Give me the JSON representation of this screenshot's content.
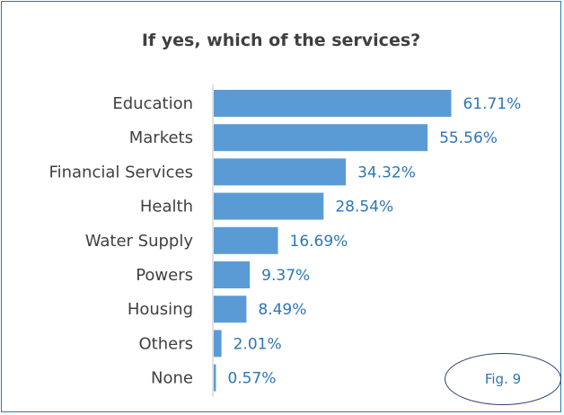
{
  "chart_data": {
    "type": "bar",
    "orientation": "horizontal",
    "title": "If yes, which of the services?",
    "categories": [
      "Education",
      "Markets",
      "Financial Services",
      "Health",
      "Water Supply",
      "Powers",
      "Housing",
      "Others",
      "None"
    ],
    "values": [
      61.71,
      55.56,
      34.32,
      28.54,
      16.69,
      9.37,
      8.49,
      2.01,
      0.57
    ],
    "value_labels": [
      "61.71%",
      "55.56%",
      "34.32%",
      "28.54%",
      "16.69%",
      "9.37%",
      "8.49%",
      "2.01%",
      "0.57%"
    ],
    "xlabel": "",
    "ylabel": "",
    "xlim": [
      0,
      70
    ],
    "grid": false,
    "legend": "none"
  },
  "figure_label": "Fig. 9",
  "colors": {
    "bar": "#5b9bd5",
    "value_label": "#2e75b6",
    "axis": "#d9d9d9",
    "frame": "#2b78b8",
    "badge_border": "#2e3f6e",
    "badge_text": "#2e75b6"
  }
}
